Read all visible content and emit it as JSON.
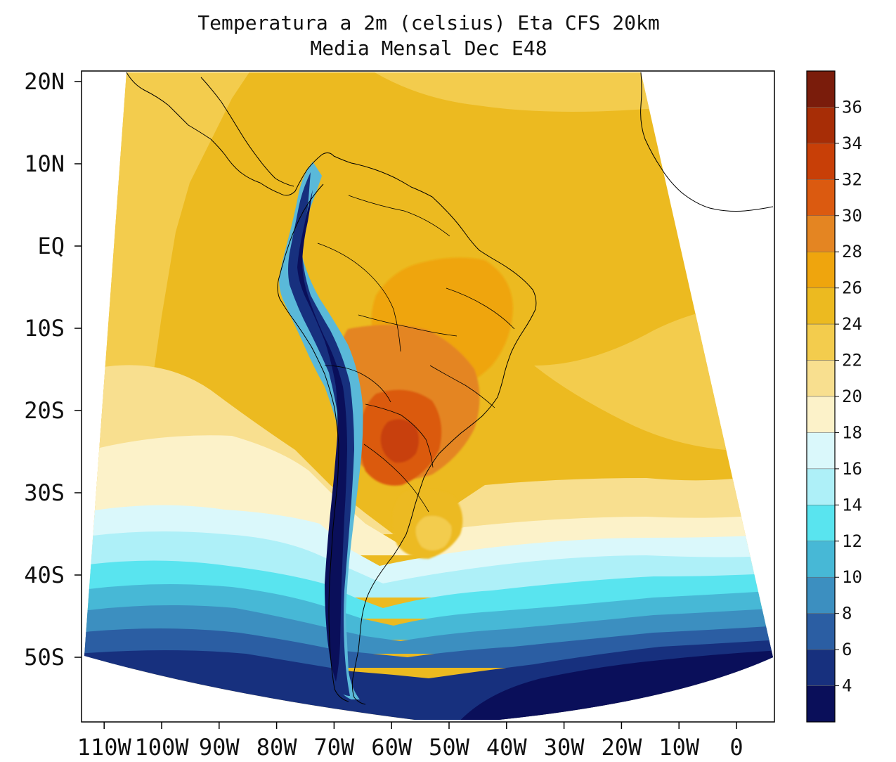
{
  "title": {
    "line1": "Temperatura a 2m (celsius) Eta CFS 20km",
    "line2": "Media Mensal Dec  E48"
  },
  "map": {
    "lat_ticks": [
      {
        "label": "20N",
        "lat": 20
      },
      {
        "label": "10N",
        "lat": 10
      },
      {
        "label": "EQ",
        "lat": 0
      },
      {
        "label": "10S",
        "lat": -10
      },
      {
        "label": "20S",
        "lat": -20
      },
      {
        "label": "30S",
        "lat": -30
      },
      {
        "label": "40S",
        "lat": -40
      },
      {
        "label": "50S",
        "lat": -50
      }
    ],
    "lon_ticks": [
      {
        "label": "110W",
        "lon": -110
      },
      {
        "label": "100W",
        "lon": -100
      },
      {
        "label": "90W",
        "lon": -90
      },
      {
        "label": "80W",
        "lon": -80
      },
      {
        "label": "70W",
        "lon": -70
      },
      {
        "label": "60W",
        "lon": -60
      },
      {
        "label": "50W",
        "lon": -50
      },
      {
        "label": "40W",
        "lon": -40
      },
      {
        "label": "30W",
        "lon": -30
      },
      {
        "label": "20W",
        "lon": -20
      },
      {
        "label": "10W",
        "lon": -10
      },
      {
        "label": "0",
        "lon": 0
      }
    ],
    "field_bands": [
      {
        "min": 2,
        "max": 4,
        "color": "#0a0f5a"
      },
      {
        "min": 4,
        "max": 6,
        "color": "#17307e"
      },
      {
        "min": 6,
        "max": 8,
        "color": "#2b5ea3"
      },
      {
        "min": 8,
        "max": 10,
        "color": "#3c8fc0"
      },
      {
        "min": 10,
        "max": 12,
        "color": "#47b8d6"
      },
      {
        "min": 12,
        "max": 14,
        "color": "#59e4ef"
      },
      {
        "min": 14,
        "max": 16,
        "color": "#aef0f8"
      },
      {
        "min": 16,
        "max": 18,
        "color": "#daf8fb"
      },
      {
        "min": 18,
        "max": 20,
        "color": "#fcf2c9"
      },
      {
        "min": 20,
        "max": 22,
        "color": "#f8df8f"
      },
      {
        "min": 22,
        "max": 24,
        "color": "#f3cc4d"
      },
      {
        "min": 24,
        "max": 26,
        "color": "#ecba20"
      },
      {
        "min": 26,
        "max": 28,
        "color": "#efa50d"
      },
      {
        "min": 28,
        "max": 30,
        "color": "#e48522"
      },
      {
        "min": 30,
        "max": 32,
        "color": "#db5a10"
      },
      {
        "min": 32,
        "max": 34,
        "color": "#c83f07"
      },
      {
        "min": 34,
        "max": 36,
        "color": "#a72d06"
      },
      {
        "min": 36,
        "max": 38,
        "color": "#7a1c0b"
      }
    ]
  },
  "colorbar": {
    "labels": [
      "36",
      "34",
      "32",
      "30",
      "28",
      "26",
      "24",
      "22",
      "20",
      "18",
      "16",
      "14",
      "12",
      "10",
      "8",
      "6",
      "4"
    ],
    "colors": [
      "#7a1c0b",
      "#a72d06",
      "#c83f07",
      "#db5a10",
      "#e48522",
      "#efa50d",
      "#ecba20",
      "#f3cc4d",
      "#f8df8f",
      "#fcf2c9",
      "#daf8fb",
      "#aef0f8",
      "#59e4ef",
      "#47b8d6",
      "#3c8fc0",
      "#2b5ea3",
      "#17307e",
      "#0a0f5a"
    ]
  }
}
